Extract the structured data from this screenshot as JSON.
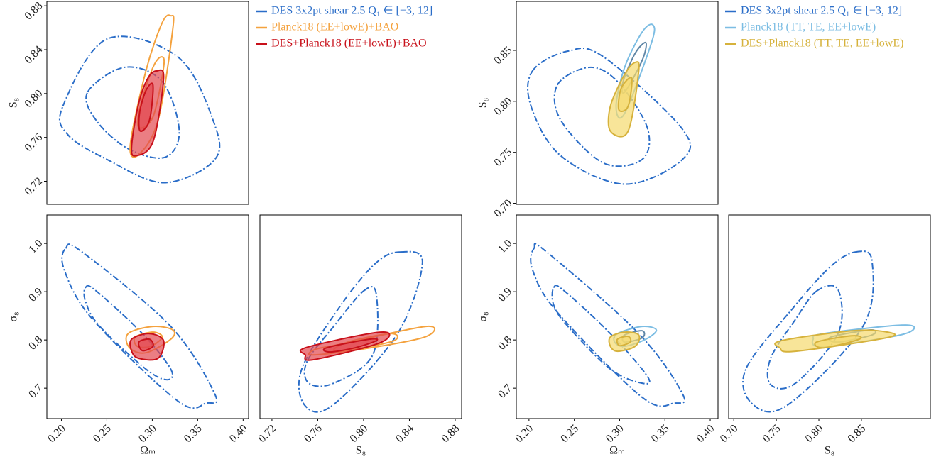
{
  "chart_data": [
    {
      "type": "contour",
      "ylabel": "S₈",
      "xlim": [
        0.184,
        0.406
      ],
      "ylim": [
        0.699,
        0.884
      ],
      "yticks": [
        0.72,
        0.76,
        {
          "value": 0.8,
          "label": "0.80"
        },
        0.84,
        0.88
      ],
      "series": [
        {
          "name": "DES 3x2pt shear 2.5  Q₁ ∈ [−3, 12]",
          "color": "#2a6dc8",
          "dash": true,
          "contours": [
            {
              "x": [
                0.2016,
                0.25,
                0.328,
                0.367,
                0.369,
                0.3125,
                0.25,
                0.207
              ],
              "y": [
                0.7884,
                0.8497,
                0.8335,
                0.7755,
                0.74,
                0.7187,
                0.74,
                0.7626
              ]
            },
            {
              "x": [
                0.2289,
                0.2695,
                0.3109,
                0.3297,
                0.3141,
                0.2734,
                0.2383
              ],
              "y": [
                0.8013,
                0.8239,
                0.811,
                0.7658,
                0.7419,
                0.7497,
                0.7755
              ]
            }
          ]
        },
        {
          "name": "Planck18 (EE+lowE)+BAO",
          "color": "#f4a23e",
          "contours": [
            {
              "x": [
                0.3203,
                0.3227,
                0.3063,
                0.2852,
                0.2758,
                0.293,
                0.3109
              ],
              "y": [
                0.871,
                0.8594,
                0.7755,
                0.7445,
                0.7529,
                0.8206,
                0.8645
              ]
            },
            {
              "x": [
                0.3102,
                0.3125,
                0.3008,
                0.2852,
                0.2867,
                0.3008
              ],
              "y": [
                0.8335,
                0.8239,
                0.7787,
                0.769,
                0.7884,
                0.8239
              ]
            }
          ]
        },
        {
          "name": "DES+Planck18 (EE+lowE)+BAO",
          "color": "#c8101a",
          "fill": "#e2474e",
          "contours": [
            {
              "x": [
                0.3047,
                0.3125,
                0.3008,
                0.2813,
                0.2773,
                0.2852,
                0.2953
              ],
              "y": [
                0.8206,
                0.8142,
                0.7561,
                0.7432,
                0.7529,
                0.7916,
                0.8142
              ]
            },
            {
              "x": [
                0.3008,
                0.2969,
                0.2867,
                0.2859,
                0.293
              ],
              "y": [
                0.8077,
                0.7755,
                0.7658,
                0.7819,
                0.8026
              ]
            }
          ]
        }
      ]
    },
    {
      "type": "contour",
      "xlabel": "Ωₘ",
      "ylabel": "σ₈",
      "xlim": [
        0.184,
        0.406
      ],
      "ylim": [
        0.637,
        1.059
      ],
      "xticks": [
        {
          "value": 0.2,
          "label": "0.20"
        },
        0.25,
        {
          "value": 0.3,
          "label": "0.30"
        },
        0.35,
        {
          "value": 0.4,
          "label": "0.40"
        }
      ],
      "yticks": [
        0.7,
        0.8,
        0.9,
        {
          "value": 1,
          "label": "1.0"
        }
      ],
      "series": [
        {
          "color": "#2a6dc8",
          "dash": true,
          "contours": [
            {
              "x": [
                0.2047,
                0.2227,
                0.3203,
                0.3688,
                0.3594,
                0.3281,
                0.2344,
                0.2031
              ],
              "y": [
                0.9897,
                0.9824,
                0.828,
                0.6882,
                0.669,
                0.6735,
                0.8426,
                0.9456
              ]
            },
            {
              "x": [
                0.2266,
                0.2383,
                0.2891,
                0.3203,
                0.3164,
                0.293,
                0.2422,
                0.2266
              ],
              "y": [
                0.9088,
                0.9015,
                0.8132,
                0.7397,
                0.7176,
                0.7397,
                0.828,
                0.8794
              ]
            }
          ]
        },
        {
          "color": "#f4a23e",
          "contours": [
            {
              "x": [
                0.2734,
                0.3008,
                0.3227,
                0.3203,
                0.293,
                0.275
              ],
              "y": [
                0.8132,
                0.828,
                0.8206,
                0.8015,
                0.7735,
                0.7838
              ]
            },
            {
              "x": [
                0.2813,
                0.3008,
                0.3109,
                0.2984,
                0.2836
              ],
              "y": [
                0.8059,
                0.8162,
                0.8059,
                0.7868,
                0.7868
              ]
            }
          ]
        },
        {
          "color": "#c8101a",
          "fill": "#e2474e",
          "contours": [
            {
              "x": [
                0.2773,
                0.2969,
                0.3125,
                0.3063,
                0.2852,
                0.2773
              ],
              "y": [
                0.8015,
                0.8132,
                0.7985,
                0.7618,
                0.7618,
                0.7765
              ]
            },
            {
              "x": [
                0.2852,
                0.2969,
                0.3008,
                0.2891
              ],
              "y": [
                0.7956,
                0.8015,
                0.7868,
                0.7779
              ]
            }
          ]
        }
      ]
    },
    {
      "type": "contour",
      "xlabel": "S₈",
      "xlim": [
        0.7095,
        0.8856
      ],
      "ylim": [
        0.637,
        1.059
      ],
      "xticks": [
        0.72,
        0.76,
        {
          "value": 0.8,
          "label": "0.80"
        },
        0.84,
        0.88
      ],
      "series": [
        {
          "color": "#2a6dc8",
          "dash": true,
          "contours": [
            {
              "x": [
                0.8328,
                0.8514,
                0.8297,
                0.7739,
                0.7491,
                0.746,
                0.7801,
                0.8111
              ],
              "y": [
                0.9824,
                0.9603,
                0.8132,
                0.6662,
                0.6632,
                0.7397,
                0.872,
                0.9603
              ]
            },
            {
              "x": [
                0.8,
                0.8111,
                0.808,
                0.7739,
                0.7522,
                0.7504,
                0.7739
              ],
              "y": [
                0.9015,
                0.8941,
                0.7691,
                0.7103,
                0.7103,
                0.7544,
                0.828
              ]
            }
          ]
        },
        {
          "color": "#f4a23e",
          "contours": [
            {
              "x": [
                0.7801,
                0.8545,
                0.8533,
                0.7987,
                0.7553,
                0.7584
              ],
              "y": [
                0.7912,
                0.828,
                0.8059,
                0.7809,
                0.7691,
                0.7809
              ]
            },
            {
              "x": [
                0.7863,
                0.8235,
                0.8266,
                0.7925,
                0.7739
              ],
              "y": [
                0.7956,
                0.8132,
                0.7985,
                0.7809,
                0.7779
              ]
            }
          ]
        },
        {
          "color": "#c8101a",
          "fill": "#e2474e",
          "contours": [
            {
              "x": [
                0.7491,
                0.8049,
                0.8223,
                0.8111,
                0.7553,
                0.7491
              ],
              "y": [
                0.7838,
                0.8132,
                0.8132,
                0.7912,
                0.7588,
                0.7691
              ]
            },
            {
              "x": [
                0.7677,
                0.8049,
                0.8111,
                0.7925,
                0.7708
              ],
              "y": [
                0.7838,
                0.8015,
                0.7985,
                0.7838,
                0.775
              ]
            }
          ]
        }
      ]
    },
    {
      "type": "contour",
      "ylabel": "S₈",
      "xlim": [
        0.186,
        0.4086
      ],
      "ylim": [
        0.699,
        0.898
      ],
      "yticks": [
        {
          "value": 0.7,
          "label": "0.70"
        },
        0.75,
        {
          "value": 0.8,
          "label": "0.80"
        },
        0.85
      ],
      "series": [
        {
          "name": "DES 3x2pt shear 2.5  Q₁ ∈ [−3, 12]",
          "color": "#2a6dc8",
          "dash": true,
          "contours": [
            {
              "x": [
                0.2039,
                0.243,
                0.282,
                0.368,
                0.3695,
                0.3055,
                0.2352,
                0.2023
              ],
              "y": [
                0.8299,
                0.8493,
                0.8438,
                0.7743,
                0.7431,
                0.7188,
                0.7465,
                0.7951
              ]
            },
            {
              "x": [
                0.2313,
                0.2664,
                0.2977,
                0.3305,
                0.325,
                0.282,
                0.2352
              ],
              "y": [
                0.816,
                0.8333,
                0.8194,
                0.7743,
                0.7431,
                0.7396,
                0.7813
              ]
            }
          ]
        },
        {
          "name": "Planck18 (TT, TE, EE+lowE)",
          "color": "#7cbde3",
          "inner_color": "#5f86a6",
          "contours": [
            {
              "x": [
                0.3367,
                0.3352,
                0.3055,
                0.2961,
                0.3055,
                0.325
              ],
              "y": [
                0.875,
                0.8576,
                0.7882,
                0.7951,
                0.8333,
                0.8681
              ]
            },
            {
              "x": [
                0.3289,
                0.325,
                0.3055,
                0.3039,
                0.3172
              ],
              "y": [
                0.8576,
                0.8403,
                0.809,
                0.8194,
                0.8472
              ]
            }
          ]
        },
        {
          "name": "DES+Planck18 (TT, TE, EE+lowE)",
          "color": "#d6b23c",
          "fill": "#f5da6e",
          "contours": [
            {
              "x": [
                0.3172,
                0.3211,
                0.3094,
                0.2898,
                0.2898,
                0.3055
              ],
              "y": [
                0.8382,
                0.8299,
                0.7708,
                0.7708,
                0.7951,
                0.8264
              ]
            },
            {
              "x": [
                0.3133,
                0.3094,
                0.2992,
                0.3016
              ],
              "y": [
                0.8229,
                0.7951,
                0.7917,
                0.8125
              ]
            }
          ]
        }
      ]
    },
    {
      "type": "contour",
      "xlabel": "Ωₘ",
      "ylabel": "σ₈",
      "xlim": [
        0.186,
        0.4086
      ],
      "ylim": [
        0.637,
        1.059
      ],
      "xticks": [
        {
          "value": 0.2,
          "label": "0.20"
        },
        0.25,
        {
          "value": 0.3,
          "label": "0.30"
        },
        0.35,
        {
          "value": 0.4,
          "label": "0.40"
        }
      ],
      "yticks": [
        0.7,
        0.8,
        0.9,
        {
          "value": 1,
          "label": "1.0"
        }
      ],
      "series": [
        {
          "color": "#2a6dc8",
          "dash": true,
          "contours": [
            {
              "x": [
                0.2055,
                0.2195,
                0.3211,
                0.3695,
                0.3602,
                0.325,
                0.2313,
                0.2039
              ],
              "y": [
                0.9897,
                0.9824,
                0.8132,
                0.6882,
                0.669,
                0.6809,
                0.8574,
                0.9456
              ]
            },
            {
              "x": [
                0.2273,
                0.2391,
                0.2898,
                0.3305,
                0.325,
                0.2898,
                0.243,
                0.2273
              ],
              "y": [
                0.9088,
                0.9015,
                0.8132,
                0.725,
                0.7103,
                0.7397,
                0.828,
                0.8721
              ]
            }
          ]
        },
        {
          "color": "#7cbde3",
          "inner_color": "#5f86a6",
          "contours": [
            {
              "x": [
                0.2977,
                0.325,
                0.3406,
                0.3289,
                0.3055,
                0.2945
              ],
              "y": [
                0.8132,
                0.828,
                0.8206,
                0.8015,
                0.7868,
                0.7956
              ]
            },
            {
              "x": [
                0.3055,
                0.325,
                0.325,
                0.3055
              ],
              "y": [
                0.8103,
                0.8191,
                0.8044,
                0.7956
              ]
            }
          ]
        },
        {
          "color": "#d6b23c",
          "fill": "#f5da6e",
          "contours": [
            {
              "x": [
                0.2898,
                0.3055,
                0.3211,
                0.3172,
                0.2977,
                0.2898
              ],
              "y": [
                0.8059,
                0.8162,
                0.8103,
                0.7868,
                0.7765,
                0.7868
              ]
            },
            {
              "x": [
                0.2977,
                0.3094,
                0.3117,
                0.3
              ],
              "y": [
                0.8015,
                0.8074,
                0.7956,
                0.7882
              ]
            }
          ]
        }
      ]
    },
    {
      "type": "contour",
      "xlabel": "S₈",
      "xlim": [
        0.694,
        0.931
      ],
      "ylim": [
        0.637,
        1.059
      ],
      "xticks": [
        {
          "value": 0.7,
          "label": "0.70"
        },
        0.75,
        {
          "value": 0.8,
          "label": "0.80"
        },
        0.85
      ],
      "series": [
        {
          "color": "#2a6dc8",
          "dash": true,
          "contours": [
            {
              "x": [
                0.8433,
                0.8625,
                0.8517,
                0.7642,
                0.7225,
                0.7142,
                0.7725,
                0.8142
              ],
              "y": [
                0.9824,
                0.9632,
                0.828,
                0.6662,
                0.6662,
                0.7397,
                0.8721,
                0.9529
              ]
            },
            {
              "x": [
                0.7975,
                0.8225,
                0.8225,
                0.7725,
                0.7433,
                0.7433,
                0.7725
              ],
              "y": [
                0.9015,
                0.9044,
                0.8132,
                0.7103,
                0.7074,
                0.7618,
                0.8426
              ]
            }
          ]
        },
        {
          "color": "#7cbde3",
          "inner_color": "#5f86a6",
          "contours": [
            {
              "x": [
                0.8058,
                0.9017,
                0.9017,
                0.8308,
                0.7975,
                0.7933
              ],
              "y": [
                0.8132,
                0.8309,
                0.8132,
                0.7912,
                0.7868,
                0.8015
              ]
            },
            {
              "x": [
                0.8142,
                0.86,
                0.8625,
                0.8225
              ],
              "y": [
                0.8059,
                0.8206,
                0.8103,
                0.7956
              ]
            }
          ]
        },
        {
          "color": "#d6b23c",
          "fill": "#f5da6e",
          "contours": [
            {
              "x": [
                0.7558,
                0.8392,
                0.8808,
                0.8792,
                0.7725,
                0.7542
              ],
              "y": [
                0.7985,
                0.8191,
                0.8162,
                0.8044,
                0.7765,
                0.7838
              ]
            },
            {
              "x": [
                0.7975,
                0.8392,
                0.8475,
                0.8058
              ],
              "y": [
                0.7956,
                0.8088,
                0.8015,
                0.7838
              ]
            }
          ]
        }
      ]
    }
  ]
}
